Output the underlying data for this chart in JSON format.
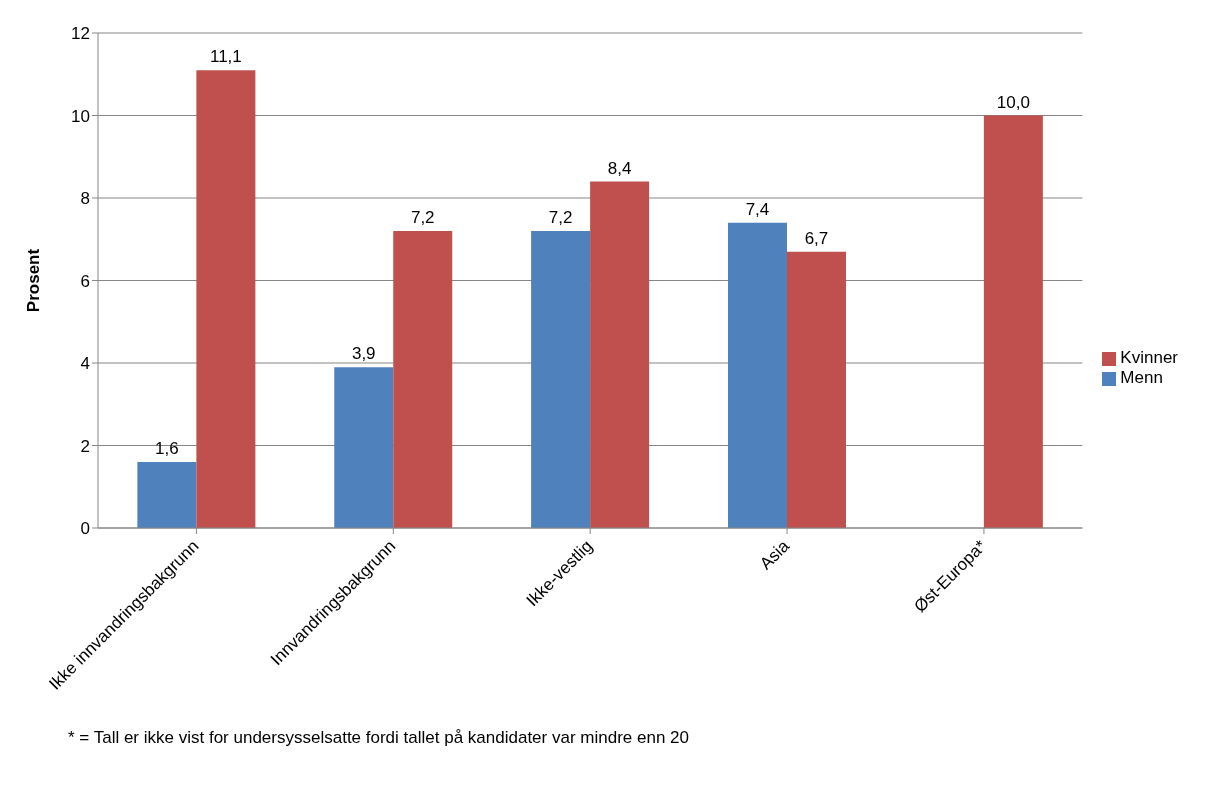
{
  "chart_data": {
    "type": "bar",
    "ylabel": "Prosent",
    "categories": [
      "Ikke innvandringsbakgrunn",
      "Innvandringsbakgrunn",
      "Ikke-vestlig",
      "Asia",
      "Øst-Europa*"
    ],
    "series": [
      {
        "name": "Menn",
        "color": "#4f81bd",
        "values": [
          1.6,
          3.9,
          7.2,
          7.4,
          null
        ],
        "value_labels": [
          "1,6",
          "3,9",
          "7,2",
          "7,4",
          null
        ]
      },
      {
        "name": "Kvinner",
        "color": "#c0504d",
        "values": [
          11.1,
          7.2,
          8.4,
          6.7,
          10.0
        ],
        "value_labels": [
          "11,1",
          "7,2",
          "8,4",
          "6,7",
          "10,0"
        ]
      }
    ],
    "ylim": [
      0,
      12
    ],
    "yticks": [
      0,
      2,
      4,
      6,
      8,
      10,
      12
    ],
    "grid": "y",
    "legend": "right",
    "annotations": [
      "* = Tall er ikke vist for undersysselsatte fordi tallet på kandidater var mindre enn 20"
    ]
  }
}
